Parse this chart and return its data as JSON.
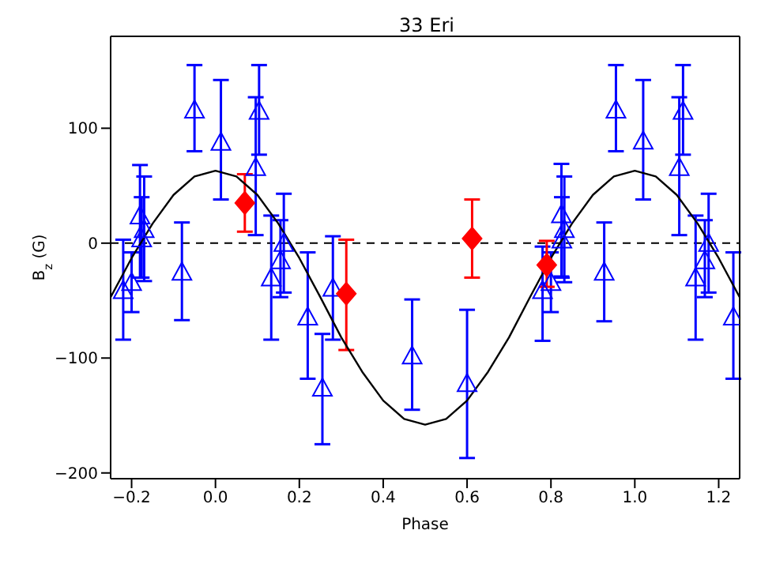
{
  "chart_data": {
    "type": "scatter",
    "title": "33 Eri",
    "xlabel": "Phase",
    "ylabel": "B$_{z}$ (G)",
    "xlim": [
      -0.25,
      1.25
    ],
    "xticks": [
      -0.2,
      {
        "value": 0,
        "label": "0.0"
      },
      0.2,
      0.4,
      0.6,
      0.8,
      {
        "value": 1,
        "label": "1.0"
      },
      1.2
    ],
    "ylim": [
      -205,
      180
    ],
    "yticks": [
      -200,
      -100,
      0,
      100
    ],
    "ref_lines": [
      {
        "axis": "y",
        "value": 0,
        "color": "#000000",
        "line_style": "dashed"
      }
    ],
    "series": [
      {
        "color": "#0000ff",
        "marker": "triangle",
        "x": [
          -0.22,
          -0.2,
          -0.18,
          -0.17,
          -0.176,
          -0.08,
          -0.05,
          0.013,
          0.096,
          0.104,
          0.133,
          0.155,
          0.163,
          0.22,
          0.255,
          0.28,
          0.469,
          0.6,
          0.78,
          0.8,
          0.825,
          0.832,
          0.826,
          0.927,
          0.955,
          1.02,
          1.106,
          1.115,
          1.145,
          1.167,
          1.176,
          1.235
        ],
        "values": [
          -41,
          -34,
          24,
          12,
          4,
          -25,
          116,
          88,
          66,
          115,
          -30,
          -15,
          0,
          -64,
          -126,
          -39,
          -98,
          -122,
          -41,
          -34,
          25,
          12,
          3,
          -25,
          116,
          89,
          66,
          115,
          -30,
          -15,
          0,
          -64
        ],
        "errors": [
          [
            -84,
            3
          ],
          [
            -60,
            -8
          ],
          [
            -30,
            68
          ],
          [
            -33,
            58
          ],
          [
            -30,
            40
          ],
          [
            -67,
            18
          ],
          [
            80,
            155
          ],
          [
            38,
            142
          ],
          [
            7,
            127
          ],
          [
            77,
            155
          ],
          [
            -84,
            24
          ],
          [
            -47,
            20
          ],
          [
            -43,
            43
          ],
          [
            -118,
            -8
          ],
          [
            -175,
            -79
          ],
          [
            -84,
            6
          ],
          [
            -145,
            -49
          ],
          [
            -187,
            -58
          ],
          [
            -85,
            -3
          ],
          [
            -60,
            -8
          ],
          [
            -29,
            69
          ],
          [
            -34,
            58
          ],
          [
            -30,
            40
          ],
          [
            -68,
            18
          ],
          [
            80,
            155
          ],
          [
            38,
            142
          ],
          [
            7,
            127
          ],
          [
            77,
            155
          ],
          [
            -84,
            24
          ],
          [
            -47,
            20
          ],
          [
            -43,
            43
          ],
          [
            -118,
            -8
          ]
        ]
      },
      {
        "color": "#ff0000",
        "marker": "diamond",
        "x": [
          0.07,
          0.312,
          0.612,
          0.79
        ],
        "values": [
          35,
          -44,
          4,
          -19
        ],
        "errors": [
          [
            10,
            60
          ],
          [
            -93,
            3
          ],
          [
            -30,
            38
          ],
          [
            -38,
            2
          ]
        ]
      },
      {
        "type": "line",
        "color": "#000000",
        "marker": "none",
        "line_style": "solid",
        "x": [
          -0.25,
          -0.2,
          -0.15,
          -0.1,
          -0.05,
          0,
          0.05,
          0.1,
          0.15,
          0.2,
          0.25,
          0.3,
          0.35,
          0.4,
          0.45,
          0.5,
          0.55,
          0.6,
          0.65,
          0.7,
          0.75,
          0.8,
          0.85,
          0.9,
          0.95,
          1.0,
          1.05,
          1.1,
          1.15,
          1.2,
          1.25
        ],
        "values": [
          -47,
          -13,
          17,
          42,
          58,
          63,
          58,
          42,
          17,
          -13,
          -47,
          -82,
          -112,
          -137,
          -153,
          -158,
          -153,
          -137,
          -112,
          -82,
          -47,
          -13,
          17,
          42,
          58,
          63,
          58,
          42,
          17,
          -13,
          -47
        ]
      }
    ]
  }
}
